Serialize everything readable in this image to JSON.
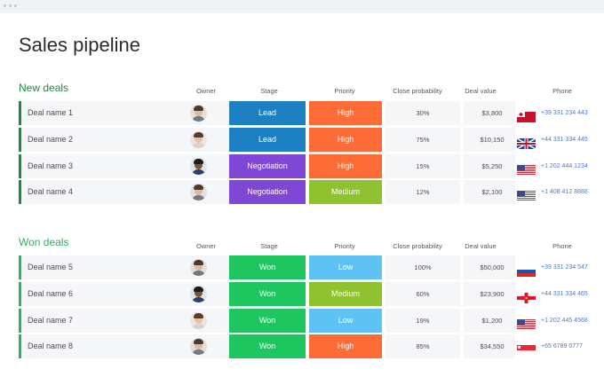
{
  "page": {
    "title": "Sales pipeline"
  },
  "colors": {
    "new_bar": "#1e8a3b",
    "won_bar": "#2fb35a",
    "lead": "#1c80c3",
    "negotiation": "#7e47d4",
    "won": "#1ec65f",
    "high": "#fd6b36",
    "medium": "#8ec22e",
    "low": "#5ec2f5"
  },
  "columns": {
    "owner": "Owner",
    "stage": "Stage",
    "priority": "Priority",
    "close_probability": "Close probability",
    "deal_value": "Deal value",
    "phone": "Phone"
  },
  "groups": [
    {
      "title": "New deals",
      "rows": [
        {
          "name": "Deal name 1",
          "avatar": "person-avatar-man",
          "stage": "Lead",
          "priority": "High",
          "probability": "30%",
          "value": "$3,800",
          "flag": "tonga-flag-icon",
          "phone": "+39 331 234 443"
        },
        {
          "name": "Deal name 2",
          "avatar": "person-avatar-woman",
          "stage": "Lead",
          "priority": "High",
          "probability": "75%",
          "value": "$10,150",
          "flag": "uk-flag-icon",
          "phone": "+44 331 334 445"
        },
        {
          "name": "Deal name 3",
          "avatar": "person-avatar-man-dark",
          "stage": "Negotiation",
          "priority": "High",
          "probability": "15%",
          "value": "$5,250",
          "flag": "us-flag-icon",
          "phone": "+1 202 444 1234"
        },
        {
          "name": "Deal name 4",
          "avatar": "person-avatar-man",
          "stage": "Negotiation",
          "priority": "Medium",
          "probability": "12%",
          "value": "$2,100",
          "flag": "us-flag-icon",
          "phone": "+1 408 412 8888"
        }
      ]
    },
    {
      "title": "Won deals",
      "rows": [
        {
          "name": "Deal name 5",
          "avatar": "person-avatar-man",
          "stage": "Won",
          "priority": "Low",
          "probability": "100%",
          "value": "$50,000",
          "flag": "russia-flag-icon",
          "phone": "+39 331 234 547"
        },
        {
          "name": "Deal name 6",
          "avatar": "person-avatar-man-dark",
          "stage": "Won",
          "priority": "Medium",
          "probability": "60%",
          "value": "$23,900",
          "flag": "guernsey-flag-icon",
          "phone": "+44 331 334 465"
        },
        {
          "name": "Deal name 7",
          "avatar": "person-avatar-woman",
          "stage": "Won",
          "priority": "Low",
          "probability": "19%",
          "value": "$1,200",
          "flag": "us-flag-icon",
          "phone": "+1 202 445 4568"
        },
        {
          "name": "Deal name 8",
          "avatar": "person-avatar-man",
          "stage": "Won",
          "priority": "High",
          "probability": "85%",
          "value": "$34,550",
          "flag": "singapore-flag-icon",
          "phone": "+65 6789 0777"
        }
      ]
    }
  ]
}
